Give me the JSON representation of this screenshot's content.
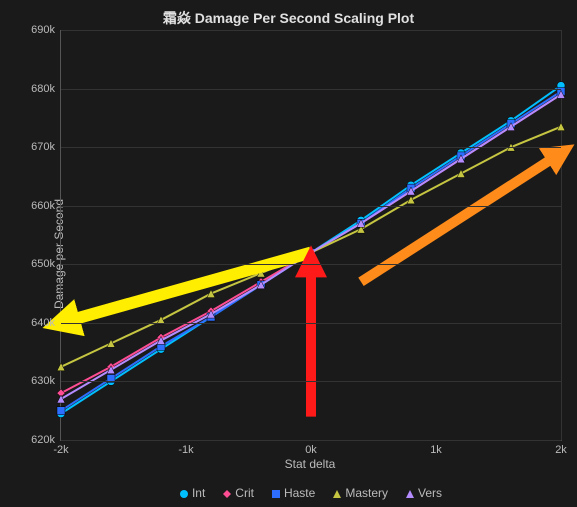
{
  "chart": {
    "type": "line",
    "title": "霜焱 Damage Per Second Scaling Plot",
    "xlabel": "Stat delta",
    "ylabel": "Damage per Second",
    "background_color": "#1a1a1a",
    "grid_color": "#333333",
    "axis_color": "#555555",
    "text_color": "#bbbbbb",
    "title_fontsize": 14,
    "label_fontsize": 12,
    "tick_fontsize": 11,
    "xlim": [
      -2000,
      2000
    ],
    "ylim": [
      620000,
      690000
    ],
    "xticks": [
      -2000,
      -1000,
      0,
      1000,
      2000
    ],
    "xtick_labels": [
      "-2k",
      "-1k",
      "0k",
      "1k",
      "2k"
    ],
    "yticks": [
      620000,
      630000,
      640000,
      650000,
      660000,
      670000,
      680000,
      690000
    ],
    "ytick_labels": [
      "620k",
      "630k",
      "640k",
      "650k",
      "660k",
      "670k",
      "680k",
      "690k"
    ],
    "x_values": [
      -2000,
      -1600,
      -1200,
      -800,
      -400,
      0,
      400,
      800,
      1200,
      1600,
      2000
    ],
    "series": [
      {
        "name": "Int",
        "color": "#00bfff",
        "marker": "circle",
        "y": [
          624500,
          630000,
          635500,
          641000,
          646500,
          652000,
          657500,
          663500,
          669000,
          674500,
          680500
        ]
      },
      {
        "name": "Crit",
        "color": "#ff4d94",
        "marker": "diamond",
        "y": [
          628000,
          632500,
          637500,
          642000,
          647000,
          652000,
          657000,
          662500,
          668000,
          673500,
          679000
        ]
      },
      {
        "name": "Haste",
        "color": "#2e6eff",
        "marker": "square",
        "y": [
          625000,
          630500,
          636000,
          641000,
          646500,
          652000,
          657000,
          663000,
          668500,
          674000,
          679500
        ]
      },
      {
        "name": "Mastery",
        "color": "#c5c542",
        "marker": "triangle",
        "y": [
          632500,
          636500,
          640500,
          645000,
          648500,
          652000,
          656000,
          661000,
          665500,
          670000,
          673500
        ]
      },
      {
        "name": "Vers",
        "color": "#b58cff",
        "marker": "triangle",
        "y": [
          627000,
          632000,
          637000,
          641500,
          646500,
          652000,
          657000,
          662500,
          668000,
          673500,
          679000
        ]
      }
    ],
    "line_width": 2,
    "marker_size": 4,
    "annotations": [
      {
        "type": "arrow",
        "color": "#ffee00",
        "from_x": 0,
        "from_y": 652000,
        "to_x": -2000,
        "to_y": 640000,
        "width": 12
      },
      {
        "type": "arrow",
        "color": "#ff8c1a",
        "from_x": 400,
        "from_y": 647000,
        "to_x": 2000,
        "to_y": 669000,
        "width": 10
      },
      {
        "type": "arrow",
        "color": "#ff1a1a",
        "from_x": 0,
        "from_y": 624000,
        "to_x": 0,
        "to_y": 650500,
        "width": 10
      }
    ]
  }
}
